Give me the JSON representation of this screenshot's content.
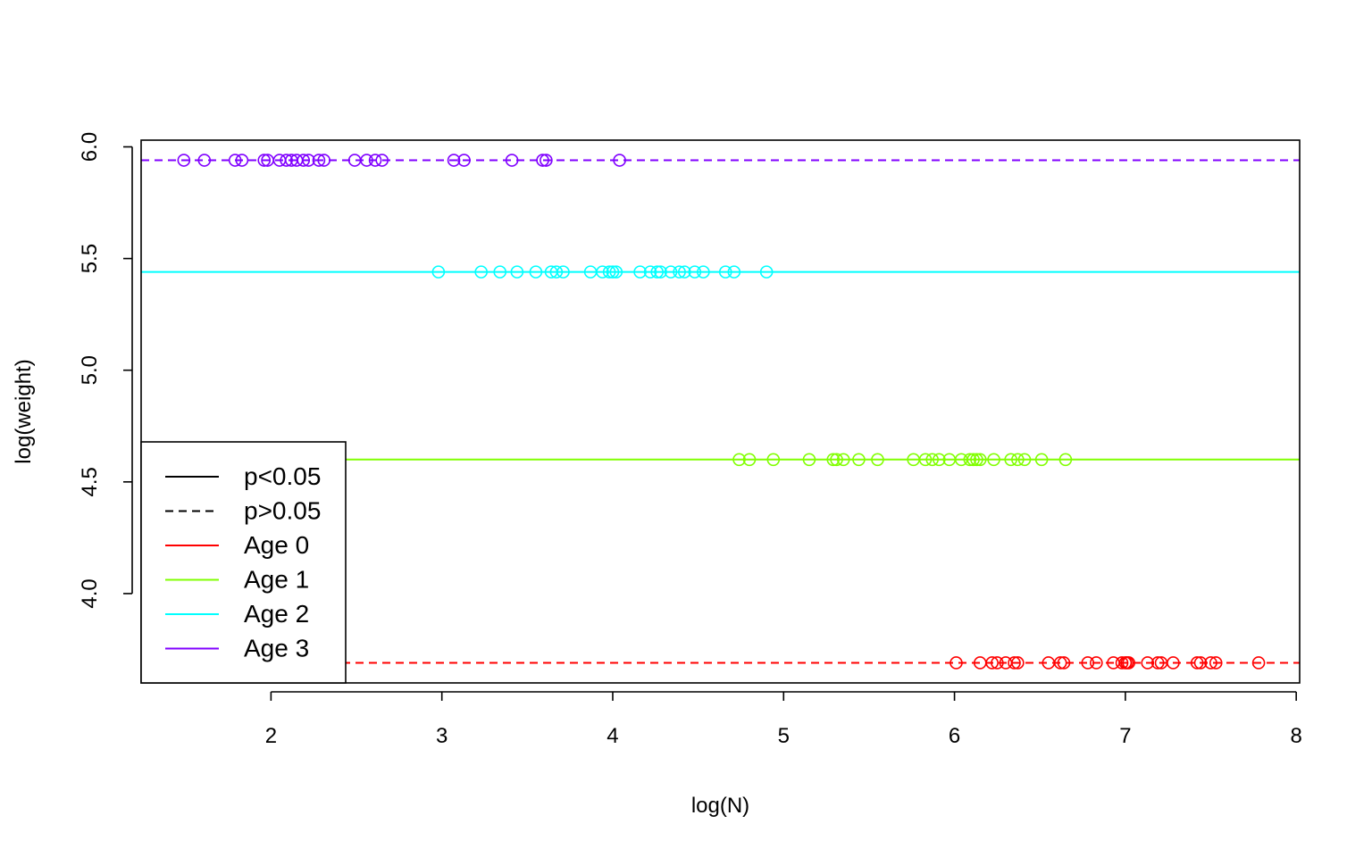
{
  "chart_data": {
    "type": "scatter",
    "title": "",
    "xlabel": "log(N)",
    "ylabel": "log(weight)",
    "xlim": [
      1.24,
      8.02
    ],
    "ylim": [
      3.6,
      6.03
    ],
    "xticks": [
      2,
      3,
      4,
      5,
      6,
      7,
      8
    ],
    "yticks": [
      4.0,
      4.5,
      5.0,
      5.5,
      6.0
    ],
    "xtick_labels": [
      "2",
      "3",
      "4",
      "5",
      "6",
      "7",
      "8"
    ],
    "ytick_labels": [
      "4.0",
      "4.5",
      "5.0",
      "5.5",
      "6.0"
    ],
    "grid": false,
    "legend_position": "bottom-left",
    "legend": [
      {
        "label": "p<0.05",
        "color": "#000000",
        "dash": "solid"
      },
      {
        "label": "p>0.05",
        "color": "#000000",
        "dash": "dashed"
      },
      {
        "label": "Age 0",
        "color": "#FF0000",
        "dash": "solid"
      },
      {
        "label": "Age 1",
        "color": "#80FF00",
        "dash": "solid"
      },
      {
        "label": "Age 2",
        "color": "#00FFFF",
        "dash": "solid"
      },
      {
        "label": "Age 3",
        "color": "#8000FF",
        "dash": "solid"
      }
    ],
    "series": [
      {
        "name": "Age 0",
        "color": "#FF0000",
        "line_y": 3.69,
        "line_style": "dashed",
        "x": [
          6.01,
          6.15,
          6.22,
          6.25,
          6.3,
          6.35,
          6.37,
          6.55,
          6.62,
          6.64,
          6.78,
          6.83,
          6.93,
          6.98,
          7.0,
          7.01,
          7.02,
          7.13,
          7.19,
          7.21,
          7.28,
          7.42,
          7.44,
          7.5,
          7.53,
          7.78
        ],
        "y": [
          3.69,
          3.69,
          3.69,
          3.69,
          3.69,
          3.69,
          3.69,
          3.69,
          3.69,
          3.69,
          3.69,
          3.69,
          3.69,
          3.69,
          3.69,
          3.69,
          3.69,
          3.69,
          3.69,
          3.69,
          3.69,
          3.69,
          3.69,
          3.69,
          3.69,
          3.69
        ]
      },
      {
        "name": "Age 1",
        "color": "#80FF00",
        "line_y": 4.6,
        "line_style": "solid",
        "x": [
          4.74,
          4.8,
          4.94,
          5.15,
          5.29,
          5.31,
          5.35,
          5.44,
          5.55,
          5.76,
          5.83,
          5.87,
          5.91,
          5.97,
          6.04,
          6.09,
          6.11,
          6.13,
          6.15,
          6.23,
          6.33,
          6.37,
          6.41,
          6.51,
          6.65
        ],
        "y": [
          4.6,
          4.6,
          4.6,
          4.6,
          4.6,
          4.6,
          4.6,
          4.6,
          4.6,
          4.6,
          4.6,
          4.6,
          4.6,
          4.6,
          4.6,
          4.6,
          4.6,
          4.6,
          4.6,
          4.6,
          4.6,
          4.6,
          4.6,
          4.6,
          4.6
        ]
      },
      {
        "name": "Age 2",
        "color": "#00FFFF",
        "line_y": 5.44,
        "line_style": "solid",
        "x": [
          2.98,
          3.23,
          3.34,
          3.44,
          3.55,
          3.64,
          3.67,
          3.71,
          3.87,
          3.94,
          3.98,
          4.0,
          4.02,
          4.16,
          4.22,
          4.26,
          4.28,
          4.34,
          4.39,
          4.42,
          4.48,
          4.53,
          4.66,
          4.71,
          4.9
        ],
        "y": [
          5.44,
          5.44,
          5.44,
          5.44,
          5.44,
          5.44,
          5.44,
          5.44,
          5.44,
          5.44,
          5.44,
          5.44,
          5.44,
          5.44,
          5.44,
          5.44,
          5.44,
          5.44,
          5.44,
          5.44,
          5.44,
          5.44,
          5.44,
          5.44,
          5.44
        ]
      },
      {
        "name": "Age 3",
        "color": "#8000FF",
        "line_y": 5.94,
        "line_style": "dashed",
        "x": [
          1.49,
          1.61,
          1.79,
          1.83,
          1.96,
          1.98,
          2.05,
          2.09,
          2.12,
          2.15,
          2.19,
          2.22,
          2.28,
          2.31,
          2.49,
          2.56,
          2.61,
          2.65,
          3.07,
          3.13,
          3.41,
          3.59,
          3.61,
          4.04
        ],
        "y": [
          5.94,
          5.94,
          5.94,
          5.94,
          5.94,
          5.94,
          5.94,
          5.94,
          5.94,
          5.94,
          5.94,
          5.94,
          5.94,
          5.94,
          5.94,
          5.94,
          5.94,
          5.94,
          5.94,
          5.94,
          5.94,
          5.94,
          5.94,
          5.94
        ]
      }
    ]
  }
}
